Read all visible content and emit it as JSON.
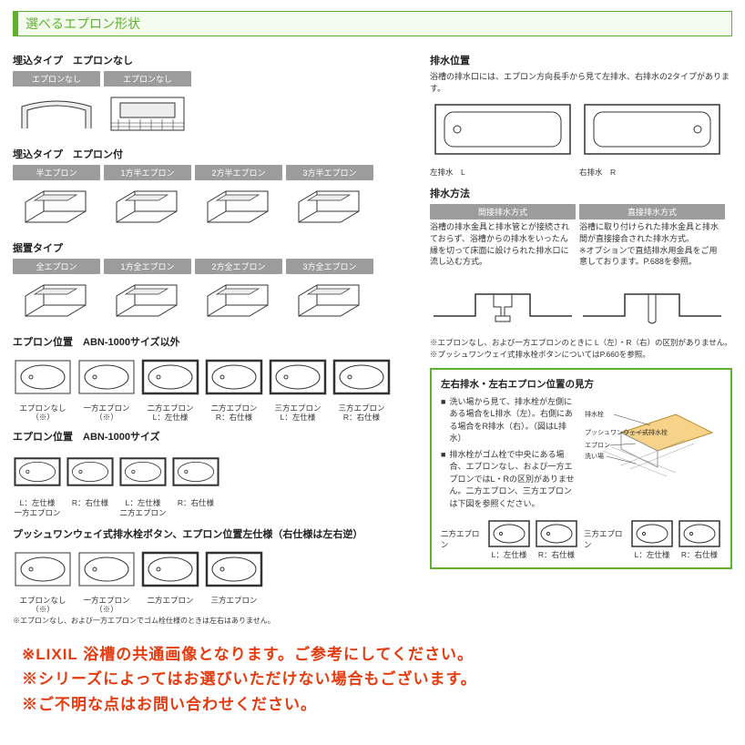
{
  "colors": {
    "accent": "#5fb030",
    "tab": "#9c9c9c",
    "warn": "#e63a0f",
    "line": "#333"
  },
  "title": "選べるエプロン形状",
  "left": {
    "sec1": {
      "heading": "埋込タイプ　エプロンなし",
      "items": [
        {
          "label": "エプロンなし",
          "kind": "embed-none-1"
        },
        {
          "label": "エプロンなし",
          "kind": "embed-none-2"
        }
      ]
    },
    "sec2": {
      "heading": "埋込タイプ　エプロン付",
      "items": [
        {
          "label": "半エプロン",
          "kind": "box3d"
        },
        {
          "label": "1方半エプロン",
          "kind": "box3d"
        },
        {
          "label": "2方半エプロン",
          "kind": "box3d"
        },
        {
          "label": "3方半エプロン",
          "kind": "box3d"
        }
      ]
    },
    "sec3": {
      "heading": "据置タイプ",
      "items": [
        {
          "label": "全エプロン",
          "kind": "box3d"
        },
        {
          "label": "1方全エプロン",
          "kind": "box3d"
        },
        {
          "label": "2方全エプロン",
          "kind": "box3d"
        },
        {
          "label": "3方全エプロン",
          "kind": "box3d"
        }
      ]
    },
    "sec4": {
      "heading": "エプロン位置　ABN-1000サイズ以外",
      "items": [
        {
          "caption": "エプロンなし（※）"
        },
        {
          "caption": "一方エプロン（※）"
        },
        {
          "caption": "二方エプロン\nL：左仕様"
        },
        {
          "caption": "二方エプロン\nR：右仕様"
        },
        {
          "caption": "三方エプロン\nL：左仕様"
        },
        {
          "caption": "三方エプロン\nR：右仕様"
        }
      ],
      "notes": [
        "※エプロンなし、および一方エプロンのときに L（左）・R（右）の区別がありません。",
        "※プッシュワンウェイ式排水栓ボタンについてはP.660を参照。"
      ]
    },
    "sec5": {
      "heading": "エプロン位置　ABN-1000サイズ",
      "items": [
        {
          "caption": "L：左仕様\n一方エプロン"
        },
        {
          "caption": "R：右仕様"
        },
        {
          "caption": "L：左仕様\n二方エプロン"
        },
        {
          "caption": "R：右仕様"
        }
      ]
    },
    "sec6": {
      "heading": "プッシュワンウェイ式排水栓ボタン、エプロン位置左仕様（右仕様は左右逆）",
      "items": [
        {
          "caption": "エプロンなし（※）"
        },
        {
          "caption": "一方エプロン（※）"
        },
        {
          "caption": "二方エプロン"
        },
        {
          "caption": "三方エプロン"
        }
      ],
      "note": "※エプロンなし、および一方エプロンでゴム栓仕様のときは左右はありません。"
    }
  },
  "right": {
    "drain_pos": {
      "heading": "排水位置",
      "desc": "浴槽の排水口には、エプロン方向長手から見て左排水、右排水の2タイプがあります。",
      "items": [
        {
          "caption": "左排水　L",
          "dot": "left"
        },
        {
          "caption": "右排水　R",
          "dot": "right"
        }
      ]
    },
    "drain_method": {
      "heading": "排水方法",
      "items": [
        {
          "label": "間接排水方式",
          "desc": "浴槽の排水金具と排水管とが接続されておらず、浴槽からの排水をいったん縁を切って床面に設けられた排水口に流し込む方式。"
        },
        {
          "label": "直接排水方式",
          "desc": "浴槽に取り付けられた排水金具と排水間が直接接合された排水方式。\n※オプションで直結排水用金具をご用意しております。P.688を参照。"
        }
      ]
    },
    "green": {
      "title": "左右排水・左右エプロン位置の見方",
      "bullets": [
        "洗い場から見て、排水栓が左側にある場合をL排水（左）。右側にある場合をR排水（右）。（図はL排水）",
        "排水栓がゴム栓で中央にある場合、エプロンなし、および一方エプロンではL・Rの区別がありません。二方エプロン、三方エプロンは下図を参照ください。"
      ],
      "labels": {
        "a": "排水栓",
        "b": "プッシュワンウェイ式排水栓",
        "c": "エプロン",
        "d": "洗い場"
      },
      "groups": [
        {
          "label": "二方エプロン",
          "items": [
            {
              "caption": "L：左仕様"
            },
            {
              "caption": "R：右仕様"
            }
          ]
        },
        {
          "label": "三方エプロン",
          "items": [
            {
              "caption": "L：左仕様"
            },
            {
              "caption": "R：右仕様"
            }
          ]
        }
      ]
    }
  },
  "footer": [
    "※LIXIL 浴槽の共通画像となります。ご参考にしてください。",
    "※シリーズによってはお選びいただけない場合もございます。",
    "※ご不明な点はお問い合わせください。"
  ]
}
